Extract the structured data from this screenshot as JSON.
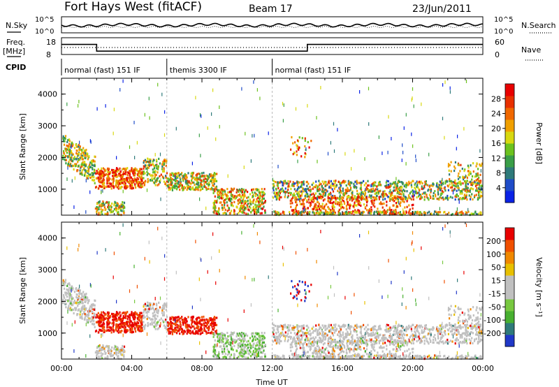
{
  "header": {
    "title": "Fort Hays West (fitACF)",
    "beam": "Beam 17",
    "date": "23/Jun/2011"
  },
  "noise_panel": {
    "left_label": "N.Sky",
    "right_label": "N.Search",
    "tick_top": "10^5",
    "tick_bottom": "10^0"
  },
  "freq_panel": {
    "left_label_top": "Freq.",
    "left_label_bottom": "[MHz]",
    "left_tick_top": "18",
    "left_tick_bottom": "8",
    "right_label": "Nave",
    "right_tick_top": "60",
    "right_tick_bottom": "0",
    "freq_levels": [
      {
        "from": 0,
        "to": 2,
        "value": 14
      },
      {
        "from": 2,
        "to": 14,
        "value": 10
      },
      {
        "from": 14,
        "to": 24,
        "value": 14
      }
    ],
    "nave_level": 25
  },
  "cpid": {
    "label": "CPID",
    "segments": [
      {
        "label": "normal (fast) 151 IF",
        "start": 0,
        "end": 6
      },
      {
        "label": "themis 3300 IF",
        "start": 6,
        "end": 12
      },
      {
        "label": "normal (fast) 151 IF",
        "start": 12,
        "end": 24
      }
    ]
  },
  "chart_data": [
    {
      "type": "heatmap",
      "name": "power",
      "ylabel": "Slant Range [km]",
      "yticks": [
        "1000",
        "2000",
        "3000",
        "4000"
      ],
      "ylim": [
        180,
        4500
      ],
      "xlim": [
        0,
        24
      ],
      "colorbar": {
        "label": "Power [dB]",
        "ticks": [
          "4",
          "8",
          "12",
          "16",
          "20",
          "24",
          "28"
        ],
        "colors": [
          "#0a22e6",
          "#1f4cc8",
          "#2e7a7a",
          "#3a9e48",
          "#6cc21e",
          "#d8d810",
          "#f0a000",
          "#f06800",
          "#e83000",
          "#e80000"
        ]
      }
    },
    {
      "type": "heatmap",
      "name": "velocity",
      "ylabel": "Slant Range [km]",
      "yticks": [
        "1000",
        "2000",
        "3000",
        "4000"
      ],
      "ylim": [
        180,
        4500
      ],
      "xlim": [
        0,
        24
      ],
      "xlabel": "Time UT",
      "xticks": [
        "00:00",
        "04:00",
        "08:00",
        "12:00",
        "16:00",
        "20:00",
        "00:00"
      ],
      "colorbar": {
        "label": "Velocity [m s⁻¹]",
        "ticks": [
          "200",
          "100",
          "50",
          "15",
          "-15",
          "-50",
          "-100",
          "-200"
        ],
        "colors": [
          "#2038c8",
          "#2f7a7a",
          "#48b030",
          "#78c840",
          "#c0c0c0",
          "#c0c0c0",
          "#e8c000",
          "#f08800",
          "#f05000",
          "#e80000"
        ]
      }
    }
  ]
}
